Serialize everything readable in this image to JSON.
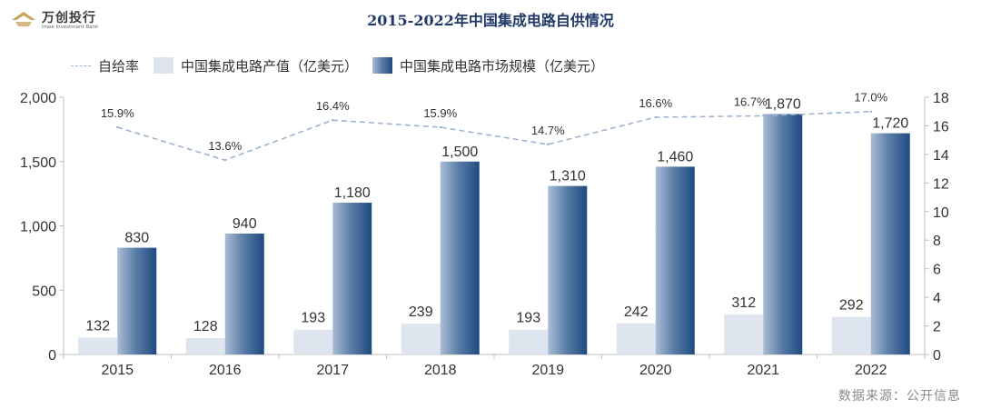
{
  "brand": {
    "name": "万创投行",
    "subtitle": "Imee Investment Bank"
  },
  "source": "数据来源：公开信息",
  "chart_data": {
    "type": "bar",
    "title": "2015-2022年中国集成电路自供情况",
    "categories": [
      "2015",
      "2016",
      "2017",
      "2018",
      "2019",
      "2020",
      "2021",
      "2022"
    ],
    "series": [
      {
        "name": "中国集成电路产值（亿美元）",
        "type": "bar",
        "axis": "left",
        "values": [
          132,
          128,
          193,
          239,
          193,
          242,
          312,
          292
        ],
        "labels": [
          "132",
          "128",
          "193",
          "239",
          "193",
          "242",
          "312",
          "292"
        ]
      },
      {
        "name": "中国集成电路市场规模（亿美元）",
        "type": "bar",
        "axis": "left",
        "values": [
          830,
          940,
          1180,
          1500,
          1310,
          1460,
          1870,
          1720
        ],
        "labels": [
          "830",
          "940",
          "1,180",
          "1,500",
          "1,310",
          "1,460",
          "1,870",
          "1,720"
        ]
      },
      {
        "name": "自给率",
        "type": "line",
        "axis": "right",
        "values": [
          15.9,
          13.6,
          16.4,
          15.9,
          14.7,
          16.6,
          16.7,
          17.0
        ],
        "labels": [
          "15.9%",
          "13.6%",
          "16.4%",
          "15.9%",
          "14.7%",
          "16.6%",
          "16.7%",
          "17.0%"
        ]
      }
    ],
    "y_left": {
      "ylim": [
        0,
        2000
      ],
      "ticks": [
        "0",
        "500",
        "1,000",
        "1,500",
        "2,000"
      ],
      "tick_values": [
        0,
        500,
        1000,
        1500,
        2000
      ]
    },
    "y_right": {
      "ylim": [
        0,
        18
      ],
      "ticks": [
        "0",
        "2",
        "4",
        "6",
        "8",
        "10",
        "12",
        "14",
        "16",
        "18"
      ],
      "tick_values": [
        0,
        2,
        4,
        6,
        8,
        10,
        12,
        14,
        16,
        18
      ]
    },
    "legend": "top-left",
    "grid": false,
    "colors": {
      "bar_light": "#dfe5ee",
      "bar_dark_start": "#a9bdd6",
      "bar_dark_end": "#1e4a80",
      "line": "#9ab0cc",
      "axis": "#bfbfbf"
    }
  }
}
